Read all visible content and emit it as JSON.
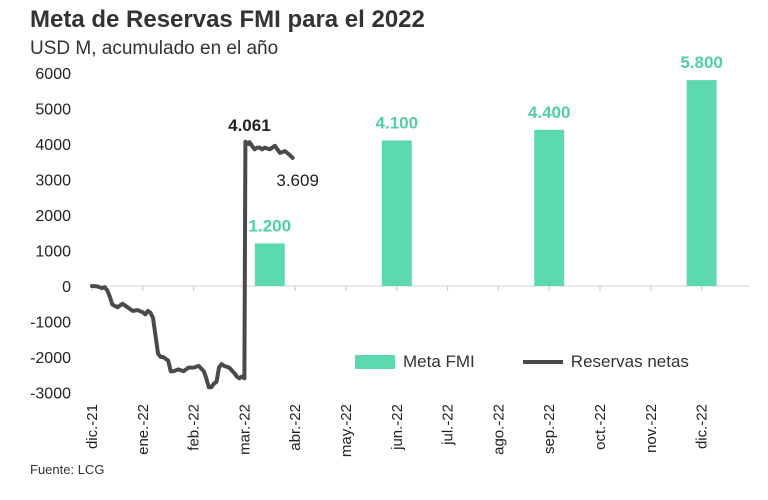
{
  "title": "Meta de Reservas FMI para el 2022",
  "subtitle": "USD M, acumulado en el año",
  "source": "Fuente: LCG",
  "colors": {
    "bar": "#5dd9b1",
    "line": "#4a4a4a",
    "bar_label": "#4fcfa5"
  },
  "chart_data": {
    "type": "bar+line",
    "ylim": [
      -3000,
      6000
    ],
    "yticks": [
      "6000",
      "5000",
      "4000",
      "3000",
      "2000",
      "1000",
      "0",
      "-1000",
      "-2000",
      "-3000"
    ],
    "categories": [
      "dic.-21",
      "ene.-22",
      "feb.-22",
      "mar.-22",
      "abr.-22",
      "may.-22",
      "jun.-22",
      "jul.-22",
      "ago.-22",
      "sep.-22",
      "oct.-22",
      "nov.-22",
      "dic.-22"
    ],
    "bar_series": {
      "name": "Meta FMI",
      "points": [
        {
          "x": 3.5,
          "value": 1200,
          "label": "1.200"
        },
        {
          "x": 6.0,
          "value": 4100,
          "label": "4.100"
        },
        {
          "x": 9.0,
          "value": 4400,
          "label": "4.400"
        },
        {
          "x": 12.0,
          "value": 5800,
          "label": "5.800"
        }
      ]
    },
    "line_series": {
      "name": "Reservas netas",
      "points": [
        [
          0.0,
          0
        ],
        [
          0.1,
          -10
        ],
        [
          0.2,
          -60
        ],
        [
          0.25,
          -30
        ],
        [
          0.3,
          -120
        ],
        [
          0.35,
          -300
        ],
        [
          0.4,
          -520
        ],
        [
          0.5,
          -600
        ],
        [
          0.6,
          -500
        ],
        [
          0.7,
          -600
        ],
        [
          0.8,
          -700
        ],
        [
          0.9,
          -680
        ],
        [
          1.0,
          -740
        ],
        [
          1.05,
          -800
        ],
        [
          1.1,
          -700
        ],
        [
          1.15,
          -750
        ],
        [
          1.2,
          -900
        ],
        [
          1.3,
          -1900
        ],
        [
          1.35,
          -2000
        ],
        [
          1.4,
          -2000
        ],
        [
          1.5,
          -2100
        ],
        [
          1.55,
          -2400
        ],
        [
          1.6,
          -2400
        ],
        [
          1.7,
          -2350
        ],
        [
          1.8,
          -2400
        ],
        [
          1.9,
          -2300
        ],
        [
          2.0,
          -2300
        ],
        [
          2.1,
          -2250
        ],
        [
          2.2,
          -2400
        ],
        [
          2.25,
          -2600
        ],
        [
          2.3,
          -2850
        ],
        [
          2.35,
          -2850
        ],
        [
          2.4,
          -2750
        ],
        [
          2.45,
          -2700
        ],
        [
          2.5,
          -2300
        ],
        [
          2.55,
          -2200
        ],
        [
          2.6,
          -2250
        ],
        [
          2.7,
          -2300
        ],
        [
          2.8,
          -2450
        ],
        [
          2.85,
          -2550
        ],
        [
          2.9,
          -2600
        ],
        [
          2.95,
          -2550
        ],
        [
          3.0,
          -2600
        ],
        [
          3.02,
          4061
        ],
        [
          3.08,
          4000
        ],
        [
          3.1,
          4050
        ],
        [
          3.15,
          3950
        ],
        [
          3.2,
          3850
        ],
        [
          3.25,
          3900
        ],
        [
          3.3,
          3900
        ],
        [
          3.35,
          3850
        ],
        [
          3.4,
          3900
        ],
        [
          3.5,
          3850
        ],
        [
          3.6,
          3950
        ],
        [
          3.65,
          3850
        ],
        [
          3.7,
          3750
        ],
        [
          3.8,
          3800
        ],
        [
          3.9,
          3680
        ],
        [
          3.95,
          3609
        ]
      ],
      "annotations": [
        {
          "x": 3.0,
          "value": 4061,
          "label": "4.061"
        },
        {
          "x": 3.95,
          "value": 3609,
          "label": "3.609"
        }
      ]
    },
    "legend": [
      "Meta FMI",
      "Reservas netas"
    ],
    "legend_position": "lower-right",
    "grid": false
  }
}
